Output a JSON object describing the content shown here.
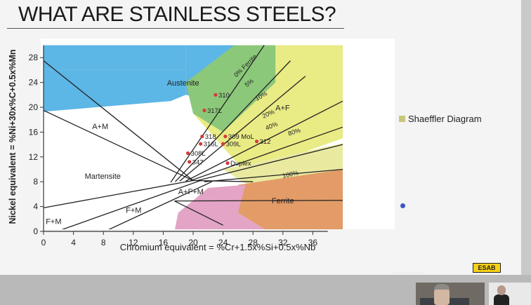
{
  "title": "WHAT ARE STAINLESS STEELS?",
  "legend": {
    "label": "Shaeffler Diagram"
  },
  "footer": {
    "logo": "ESAB"
  },
  "chart_data": {
    "type": "diagram",
    "xlabel": "Chromium equivalent = %Cr+1.5x%Si+0.5x%Nb",
    "ylabel": "Nickel equivalent = %Ni+30x%C+0.5x%Mn",
    "xlim": [
      0,
      40
    ],
    "ylim": [
      0,
      30
    ],
    "xticks": [
      "0",
      "4",
      "8",
      "12",
      "16",
      "20",
      "24",
      "28",
      "32",
      "36"
    ],
    "yticks": [
      "0",
      "4",
      "8",
      "12",
      "16",
      "20",
      "24",
      "28"
    ],
    "regions": [
      {
        "label": "Austenite"
      },
      {
        "label": "A+M"
      },
      {
        "label": "Martensite"
      },
      {
        "label": "F+M"
      },
      {
        "label": "F+M"
      },
      {
        "label": "A+F+M"
      },
      {
        "label": "A+F"
      },
      {
        "label": "Ferrite"
      }
    ],
    "ferrite_lines": [
      "0% Ferrite",
      "5%",
      "10%",
      "20%",
      "40%",
      "80%",
      "100%"
    ],
    "alloys": [
      {
        "label": "310",
        "x": 23.0,
        "y": 22.0
      },
      {
        "label": "312",
        "x": 28.5,
        "y": 14.5
      },
      {
        "label": "317L",
        "x": 21.5,
        "y": 19.5
      },
      {
        "label": "318",
        "x": 21.2,
        "y": 15.3
      },
      {
        "label": "309 MoL",
        "x": 24.3,
        "y": 15.3
      },
      {
        "label": "316L",
        "x": 21.0,
        "y": 14.1
      },
      {
        "label": "309L",
        "x": 24.0,
        "y": 14.1
      },
      {
        "label": "308L",
        "x": 19.3,
        "y": 12.6
      },
      {
        "label": "347",
        "x": 19.5,
        "y": 11.2
      },
      {
        "label": "Duplex",
        "x": 24.6,
        "y": 11.0
      }
    ],
    "colors": {
      "austenite": "#5cb6e6",
      "ferrite": "#e39b67",
      "a_f_low": "#8cc87a",
      "a_f_high": "#e9eb84",
      "pink": "#e3a4c5"
    }
  }
}
